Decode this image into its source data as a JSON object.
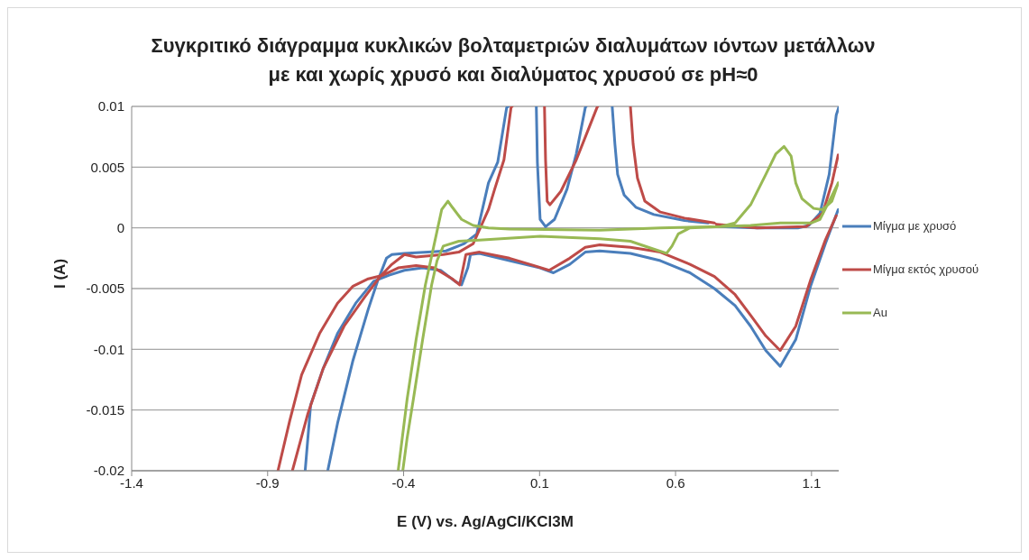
{
  "chart_data": {
    "type": "line",
    "title": "Συγκριτικό διάγραμμα κυκλικών βολταμετριών διαλυμάτων ιόντων μετάλλων με και χωρίς χρυσό και διαλύματος χρυσού σε pH≈0",
    "xlabel": "E (V) vs. Ag/AgCl/KCl3M",
    "ylabel": "I (A)",
    "xlim": [
      -1.4,
      1.2
    ],
    "xticks": [
      -1.4,
      -0.9,
      -0.4,
      0.1,
      0.6,
      1.1
    ],
    "ylim": [
      -0.02,
      0.01
    ],
    "yticks": [
      -0.02,
      -0.015,
      -0.01,
      -0.005,
      0,
      0.005,
      0.01
    ],
    "grid": "y",
    "legend": "right",
    "series": [
      {
        "name": "Μίγμα με χρυσό",
        "color": "#4a7ebb",
        "x": [
          0.76,
          0.9,
          1.05,
          1.09,
          1.131,
          1.165,
          1.191,
          1.2,
          null,
          1.198,
          1.151,
          1.098,
          1.042,
          0.985,
          0.932,
          0.876,
          0.819,
          0.743,
          0.653,
          0.544,
          0.434,
          0.321,
          0.268,
          0.211,
          0.151,
          0.102,
          -0.011,
          -0.121,
          -0.154,
          -0.164,
          -0.187,
          -0.211,
          -0.264,
          -0.33,
          -0.397,
          -0.453,
          -0.51,
          -0.576,
          -0.643,
          -0.696,
          -0.742,
          -0.762,
          null,
          -0.679,
          -0.643,
          -0.586,
          -0.53,
          -0.496,
          -0.463,
          -0.443,
          -0.397,
          -0.31,
          -0.244,
          -0.177,
          -0.131,
          -0.088,
          -0.054,
          -0.021,
          -0.015,
          null,
          0.088,
          0.092,
          0.102,
          0.122,
          0.155,
          0.201,
          0.235,
          0.268,
          0.271,
          null,
          0.367,
          0.377,
          0.387,
          0.411,
          0.454,
          0.52,
          0.633,
          0.72
        ],
        "values": [
          0.0001,
          0,
          0,
          0.0002,
          0.0012,
          0.0044,
          0.0093,
          0.0099,
          null,
          0.0015,
          -0.0013,
          -0.0047,
          -0.0092,
          -0.0114,
          -0.0101,
          -0.0081,
          -0.0064,
          -0.005,
          -0.0037,
          -0.0027,
          -0.0021,
          -0.0019,
          -0.002,
          -0.003,
          -0.0037,
          -0.0033,
          -0.0027,
          -0.0021,
          -0.0022,
          -0.0033,
          -0.0047,
          -0.0044,
          -0.0035,
          -0.0033,
          -0.0035,
          -0.0039,
          -0.0044,
          -0.0062,
          -0.0087,
          -0.0116,
          -0.0146,
          -0.02,
          null,
          -0.02,
          -0.0161,
          -0.0109,
          -0.0067,
          -0.0044,
          -0.0025,
          -0.0022,
          -0.0021,
          -0.002,
          -0.0019,
          -0.0013,
          -0.0005,
          0.0037,
          0.0054,
          0.0099,
          0.01,
          null,
          0.01,
          0.0054,
          0.0007,
          0.0001,
          0.0007,
          0.0032,
          0.0061,
          0.0099,
          0.01,
          null,
          0.01,
          0.0069,
          0.0044,
          0.0027,
          0.0017,
          0.0011,
          0.0006,
          0.0004
        ]
      },
      {
        "name": "Μίγμα εκτός χρυσού",
        "color": "#be4b48",
        "x": [
          0.75,
          0.9,
          1.08,
          1.141,
          1.175,
          1.198,
          null,
          1.191,
          1.151,
          1.098,
          1.042,
          0.985,
          0.932,
          0.876,
          0.819,
          0.743,
          0.653,
          0.544,
          0.434,
          0.321,
          0.268,
          0.211,
          0.135,
          0.078,
          -0.011,
          -0.121,
          -0.171,
          -0.194,
          -0.221,
          -0.287,
          -0.354,
          -0.42,
          -0.476,
          -0.53,
          -0.586,
          -0.643,
          -0.709,
          -0.775,
          -0.819,
          -0.862,
          null,
          -0.809,
          -0.752,
          -0.696,
          -0.619,
          -0.543,
          -0.486,
          -0.443,
          -0.397,
          -0.354,
          -0.254,
          -0.197,
          -0.144,
          -0.088,
          -0.065,
          -0.031,
          -0.005,
          -0.001,
          null,
          0.118,
          0.122,
          0.128,
          0.138,
          0.178,
          0.235,
          0.288,
          0.311,
          0.314,
          null,
          0.434,
          0.444,
          0.46,
          0.487,
          0.544,
          0.633,
          0.743
        ],
        "values": [
          0.0003,
          0,
          0.0001,
          0.0012,
          0.0037,
          0.006,
          null,
          0.001,
          -0.001,
          -0.0042,
          -0.0081,
          -0.0101,
          -0.0089,
          -0.0072,
          -0.0055,
          -0.004,
          -0.003,
          -0.002,
          -0.0016,
          -0.0014,
          -0.0016,
          -0.0025,
          -0.0035,
          -0.0031,
          -0.0025,
          -0.002,
          -0.0022,
          -0.0047,
          -0.0042,
          -0.0033,
          -0.0031,
          -0.0033,
          -0.0039,
          -0.0042,
          -0.0048,
          -0.0062,
          -0.0087,
          -0.0121,
          -0.0159,
          -0.02,
          null,
          -0.02,
          -0.0153,
          -0.0116,
          -0.0081,
          -0.0057,
          -0.004,
          -0.003,
          -0.0022,
          -0.0024,
          -0.0022,
          -0.002,
          -0.0013,
          0.0015,
          0.0032,
          0.0056,
          0.0099,
          0.01,
          null,
          0.01,
          0.0056,
          0.0022,
          0.0019,
          0.003,
          0.0056,
          0.0086,
          0.0099,
          0.01,
          null,
          0.01,
          0.0069,
          0.0041,
          0.0022,
          0.0013,
          0.0008,
          0.0004
        ]
      },
      {
        "name": "Au",
        "color": "#98b954",
        "x": [
          1.198,
          1.165,
          1.131,
          1.098,
          0.985,
          0.876,
          0.766,
          0.653,
          0.61,
          0.587,
          0.567,
          0.5,
          0.434,
          0.321,
          0.102,
          -0.121,
          -0.197,
          -0.254,
          -0.277,
          -0.297,
          -0.33,
          -0.364,
          -0.387,
          -0.403,
          null,
          -0.42,
          -0.387,
          -0.354,
          -0.32,
          -0.287,
          -0.26,
          -0.237,
          -0.221,
          -0.187,
          -0.144,
          -0.088,
          -0.011,
          0.321,
          0.544,
          0.766,
          0.819,
          0.876,
          0.932,
          0.969,
          0.999,
          1.025,
          1.042,
          1.065,
          1.108,
          1.141,
          1.175,
          1.198
        ],
        "values": [
          0.0037,
          0.0022,
          0.0007,
          0.0004,
          0.0004,
          0.0002,
          0.0001,
          0,
          -0.0005,
          -0.0015,
          -0.0021,
          -0.0016,
          -0.0011,
          -0.0009,
          -0.0007,
          -0.001,
          -0.0011,
          -0.0015,
          -0.0027,
          -0.0047,
          -0.0092,
          -0.0141,
          -0.0173,
          -0.02,
          null,
          -0.02,
          -0.0141,
          -0.0092,
          -0.0047,
          -0.0013,
          0.0015,
          0.0022,
          0.0017,
          0.0007,
          0.0002,
          0,
          -0.0001,
          -0.0002,
          0,
          0.0001,
          0.0004,
          0.0019,
          0.0044,
          0.0061,
          0.0067,
          0.0059,
          0.0037,
          0.0024,
          0.0016,
          0.0015,
          0.0022,
          0.0037
        ]
      }
    ]
  }
}
